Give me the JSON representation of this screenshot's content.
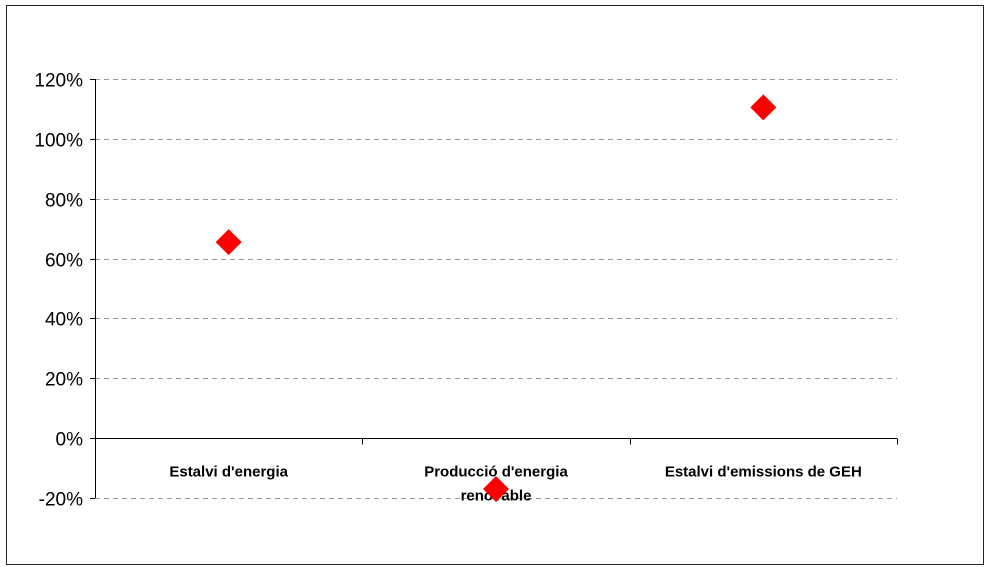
{
  "chart_data": {
    "type": "scatter",
    "title": "",
    "xlabel": "",
    "ylabel": "",
    "categories": [
      [
        "Estalvi d'energia"
      ],
      [
        "Producció d'energia",
        "renovable"
      ],
      [
        "Estalvi d'emissions de GEH"
      ]
    ],
    "values": [
      0.655,
      -0.17,
      1.105
    ],
    "ylim": [
      -0.2,
      1.2
    ],
    "yticks": [
      1.2,
      1.0,
      0.8,
      0.6,
      0.4,
      0.2,
      0.0,
      -0.2
    ],
    "ytick_labels": [
      "120%",
      "100%",
      "80%",
      "60%",
      "40%",
      "20%",
      "0%",
      "-20%"
    ],
    "grid": true,
    "legend": "none",
    "marker": "diamond",
    "colors": {
      "marker": "#ff0000",
      "grid": "#999999",
      "axis": "#000000"
    }
  }
}
